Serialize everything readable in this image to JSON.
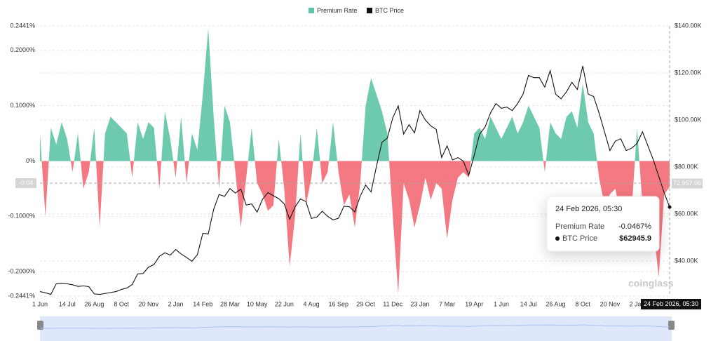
{
  "chart_data": {
    "type": "combo",
    "legend_position": "top",
    "categories": [
      "1 Jun",
      null,
      null,
      null,
      null,
      "14 Jul",
      null,
      null,
      null,
      null,
      "26 Aug",
      null,
      null,
      null,
      null,
      "8 Oct",
      null,
      null,
      null,
      null,
      "20 Nov",
      null,
      null,
      null,
      null,
      "2 Jan",
      null,
      null,
      null,
      null,
      "14 Feb",
      null,
      null,
      null,
      null,
      "28 Mar",
      null,
      null,
      null,
      null,
      "10 May",
      null,
      null,
      null,
      null,
      "22 Jun",
      null,
      null,
      null,
      null,
      "4 Aug",
      null,
      null,
      null,
      null,
      "16 Sep",
      null,
      null,
      null,
      null,
      "29 Oct",
      null,
      null,
      null,
      null,
      "11 Dec",
      null,
      null,
      null,
      null,
      "23 Jan",
      null,
      null,
      null,
      null,
      "7 Mar",
      null,
      null,
      null,
      null,
      "19 Apr",
      null,
      null,
      null,
      null,
      "1 Jun",
      null,
      null,
      null,
      null,
      "14 Jul",
      null,
      null,
      null,
      null,
      "26 Aug",
      null,
      null,
      null,
      null,
      "8 Oct",
      null,
      null,
      null,
      null,
      "20 Nov",
      null,
      null,
      null,
      null,
      "2 Jan",
      null,
      null,
      null,
      null,
      null,
      null
    ],
    "series": [
      {
        "name": "Premium Rate",
        "type": "area",
        "axis": "y",
        "color": "#5ec4a6",
        "negative_color": "#f36a74",
        "values": [
          0.05,
          -0.1,
          0.06,
          0.03,
          0.07,
          0.04,
          -0.02,
          0.05,
          -0.05,
          -0.02,
          0.06,
          -0.12,
          0.05,
          0.08,
          0.07,
          0.06,
          0.05,
          -0.03,
          0.07,
          0.04,
          0.07,
          0.06,
          -0.05,
          0.09,
          0.04,
          -0.03,
          0.08,
          -0.04,
          0.05,
          0.02,
          0.12,
          0.24,
          0.08,
          -0.05,
          0.1,
          0.07,
          -0.02,
          -0.12,
          -0.03,
          0.06,
          -0.04,
          -0.06,
          -0.09,
          -0.08,
          0.04,
          -0.05,
          -0.19,
          -0.1,
          0.05,
          -0.08,
          -0.03,
          0.06,
          -0.04,
          -0.02,
          0.07,
          -0.02,
          -0.08,
          -0.06,
          -0.12,
          -0.04,
          0.1,
          0.15,
          0.12,
          0.09,
          0.05,
          -0.1,
          -0.24,
          -0.04,
          -0.07,
          -0.12,
          -0.08,
          -0.03,
          -0.07,
          -0.04,
          -0.05,
          -0.14,
          -0.07,
          -0.03,
          -0.02,
          -0.03,
          0.05,
          0.06,
          0.04,
          0.08,
          0.06,
          0.04,
          0.06,
          0.08,
          0.05,
          0.07,
          0.1,
          0.08,
          0.06,
          -0.02,
          0.07,
          0.05,
          0.04,
          0.08,
          0.09,
          0.06,
          0.14,
          0.07,
          0.05,
          -0.03,
          -0.08,
          -0.06,
          -0.05,
          -0.1,
          -0.07,
          -0.09,
          0.06,
          -0.08,
          -0.1,
          -0.12,
          -0.21,
          -0.06,
          -0.0467
        ]
      },
      {
        "name": "BTC Price",
        "type": "line",
        "axis": "y2",
        "color": "#111111",
        "values": [
          27000,
          26500,
          25800,
          30300,
          30500,
          30300,
          29900,
          29200,
          29400,
          29100,
          26000,
          25800,
          26200,
          26600,
          27000,
          27900,
          28500,
          30000,
          34500,
          34700,
          37400,
          38500,
          42000,
          43500,
          42500,
          44900,
          43000,
          41500,
          39900,
          42700,
          51800,
          51500,
          62000,
          68300,
          67500,
          70800,
          68900,
          70600,
          63800,
          64300,
          60800,
          66300,
          69100,
          67800,
          66500,
          64300,
          57800,
          63000,
          66400,
          65300,
          58100,
          58700,
          61200,
          59000,
          57500,
          58200,
          63300,
          63100,
          60900,
          67600,
          72300,
          69400,
          80400,
          90500,
          92300,
          101000,
          106000,
          94000,
          98000,
          94500,
          104000,
          100000,
          97500,
          96000,
          84000,
          89000,
          83000,
          84000,
          82500,
          76500,
          85000,
          94000,
          97000,
          103000,
          107000,
          105000,
          105500,
          104000,
          107000,
          111000,
          119000,
          118000,
          118000,
          114000,
          121000,
          111000,
          109000,
          112000,
          116000,
          113000,
          123000,
          111000,
          110000,
          103000,
          95000,
          87000,
          91000,
          92000,
          87000,
          88000,
          90000,
          95000,
          89000,
          83000,
          76000,
          69000,
          62945.9
        ]
      }
    ],
    "ylim": [
      -0.2441,
      0.2441
    ],
    "yticks": [
      {
        "value": 0.2441,
        "label": "0.2441%"
      },
      {
        "value": 0.2,
        "label": "0.2000%"
      },
      {
        "value": 0.1,
        "label": "0.1000%"
      },
      {
        "value": 0,
        "label": "0%"
      },
      {
        "value": -0.1,
        "label": "-0.1000%"
      },
      {
        "value": -0.2,
        "label": "-0.2000%"
      },
      {
        "value": -0.2441,
        "label": "-0.2441%"
      }
    ],
    "y2lim": [
      25075,
      140000
    ],
    "y2ticks": [
      {
        "value": 140000,
        "label": "$140.00K"
      },
      {
        "value": 120000,
        "label": "$120.00K"
      },
      {
        "value": 100000,
        "label": "$100.00K"
      },
      {
        "value": 80000,
        "label": "$80.00K"
      },
      {
        "value": 60000,
        "label": "$60.00K"
      },
      {
        "value": 40000,
        "label": "$40.00K"
      }
    ],
    "grid": true,
    "crosshair": {
      "y": -0.04,
      "y2": {
        "value": 72957.06,
        "label": "72,957.06"
      },
      "x_label": "24 Feb 2026, 05:30"
    },
    "tooltip": {
      "title": "24 Feb 2026, 05:30",
      "premium_rate": {
        "value": -0.0467,
        "label": "-0.0467%"
      },
      "btc_price": {
        "value": 62945.9,
        "label": "$62945.9"
      }
    },
    "watermark": "coinglass"
  }
}
